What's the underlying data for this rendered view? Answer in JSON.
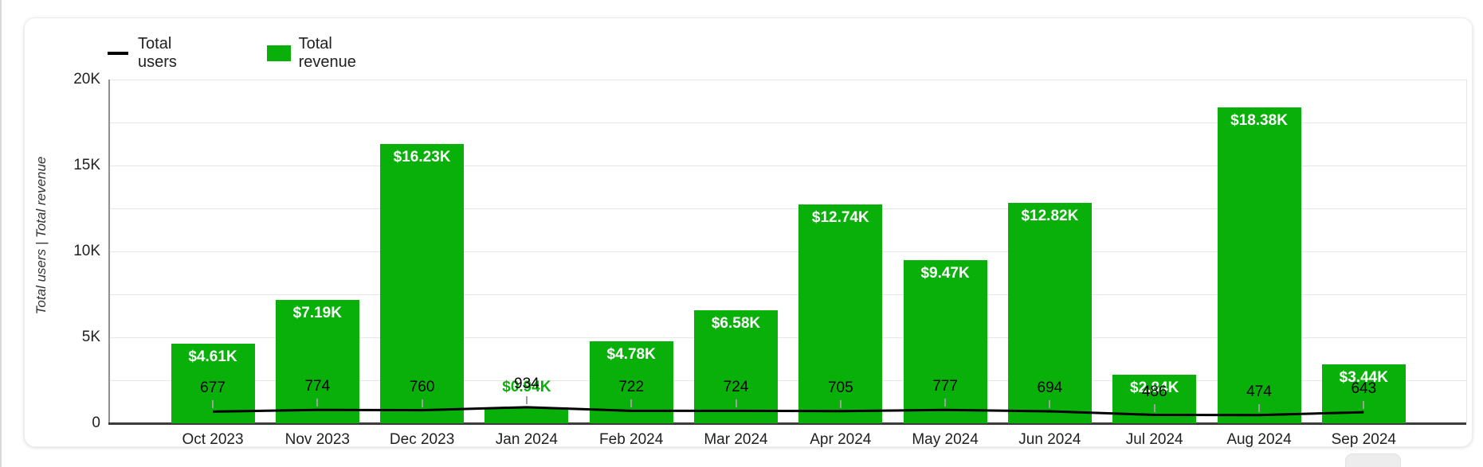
{
  "chart_data": {
    "type": "bar",
    "subtype": "bar-and-line-combo",
    "categories": [
      "Oct 2023",
      "Nov 2023",
      "Dec 2023",
      "Jan 2024",
      "Feb 2024",
      "Mar 2024",
      "Apr 2024",
      "May 2024",
      "Jun 2024",
      "Jul 2024",
      "Aug 2024",
      "Sep 2024"
    ],
    "series": [
      {
        "name": "Total users",
        "chart_type": "line",
        "color": "#000000",
        "values": [
          677,
          774,
          760,
          934,
          722,
          724,
          705,
          777,
          694,
          486,
          474,
          643
        ]
      },
      {
        "name": "Total revenue",
        "chart_type": "bar",
        "color": "#0ab00a",
        "values": [
          4610,
          7190,
          16230,
          940,
          4780,
          6580,
          12740,
          9470,
          12820,
          2840,
          18380,
          3440
        ],
        "bar_labels": [
          "$4.61K",
          "$7.19K",
          "$16.23K",
          "$0.94K",
          "$4.78K",
          "$6.58K",
          "$12.74K",
          "$9.47K",
          "$12.82K",
          "$2.84K",
          "$18.38K",
          "$3.44K"
        ]
      }
    ],
    "ylabel": "Total users | Total revenue",
    "xlabel": "",
    "ylim": [
      0,
      20000
    ],
    "ytick_values": [
      0,
      5000,
      10000,
      15000,
      20000
    ],
    "ytick_labels": [
      "0",
      "5K",
      "10K",
      "15K",
      "20K"
    ],
    "grid_interval": 2500,
    "grid": "horizontal",
    "legend_position": "top-left"
  }
}
